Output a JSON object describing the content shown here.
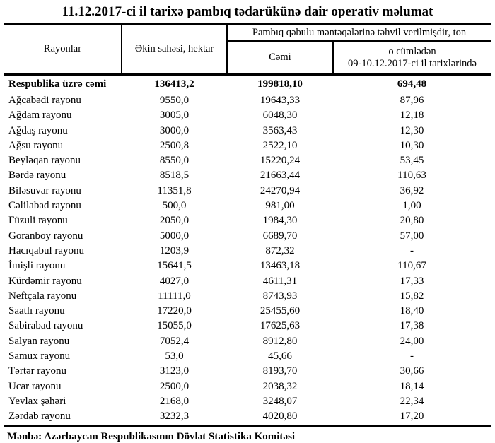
{
  "title": "11.12.2017-ci il tarixə pambıq tədarükünə dair operativ məlumat",
  "table": {
    "headers": {
      "districts": "Rayonlar",
      "area": "Əkin sahəsi, hektar",
      "delivered_group": "Pambıq qəbulu məntəqələrinə təhvil verilmişdir, ton",
      "total": "Cəmi",
      "recent_line1": "o cümlədən",
      "recent_line2": "09-10.12.2017-ci il tarixlərində"
    },
    "rows": [
      {
        "name": "Respublika üzrə cəmi",
        "area": "136413,2",
        "total": "199818,10",
        "recent": "694,48",
        "bold": true
      },
      {
        "name": "Ağcabədi rayonu",
        "area": "9550,0",
        "total": "19643,33",
        "recent": "87,96",
        "bold": false
      },
      {
        "name": "Ağdam rayonu",
        "area": "3005,0",
        "total": "6048,30",
        "recent": "12,18",
        "bold": false
      },
      {
        "name": "Ağdaş rayonu",
        "area": "3000,0",
        "total": "3563,43",
        "recent": "12,30",
        "bold": false
      },
      {
        "name": "Ağsu rayonu",
        "area": "2500,8",
        "total": "2522,10",
        "recent": "10,30",
        "bold": false
      },
      {
        "name": "Beyləqan rayonu",
        "area": "8550,0",
        "total": "15220,24",
        "recent": "53,45",
        "bold": false
      },
      {
        "name": "Bərdə rayonu",
        "area": "8518,5",
        "total": "21663,44",
        "recent": "110,63",
        "bold": false
      },
      {
        "name": "Biləsuvar rayonu",
        "area": "11351,8",
        "total": "24270,94",
        "recent": "36,92",
        "bold": false
      },
      {
        "name": "Cəlilabad rayonu",
        "area": "500,0",
        "total": "981,00",
        "recent": "1,00",
        "bold": false
      },
      {
        "name": "Füzuli rayonu",
        "area": "2050,0",
        "total": "1984,30",
        "recent": "20,80",
        "bold": false
      },
      {
        "name": "Goranboy rayonu",
        "area": "5000,0",
        "total": "6689,70",
        "recent": "57,00",
        "bold": false
      },
      {
        "name": "Hacıqabul rayonu",
        "area": "1203,9",
        "total": "872,32",
        "recent": "-",
        "bold": false
      },
      {
        "name": "İmişli rayonu",
        "area": "15641,5",
        "total": "13463,18",
        "recent": "110,67",
        "bold": false
      },
      {
        "name": "Kürdəmir rayonu",
        "area": "4027,0",
        "total": "4611,31",
        "recent": "17,33",
        "bold": false
      },
      {
        "name": "Neftçala rayonu",
        "area": "11111,0",
        "total": "8743,93",
        "recent": "15,82",
        "bold": false
      },
      {
        "name": "Saatlı rayonu",
        "area": "17220,0",
        "total": "25455,60",
        "recent": "18,40",
        "bold": false
      },
      {
        "name": "Sabirabad rayonu",
        "area": "15055,0",
        "total": "17625,63",
        "recent": "17,38",
        "bold": false
      },
      {
        "name": "Salyan rayonu",
        "area": "7052,4",
        "total": "8912,80",
        "recent": "24,00",
        "bold": false
      },
      {
        "name": "Samux rayonu",
        "area": "53,0",
        "total": "45,66",
        "recent": "-",
        "bold": false
      },
      {
        "name": "Tərtər rayonu",
        "area": "3123,0",
        "total": "8193,70",
        "recent": "30,66",
        "bold": false
      },
      {
        "name": "Ucar rayonu",
        "area": "2500,0",
        "total": "2038,32",
        "recent": "18,14",
        "bold": false
      },
      {
        "name": "Yevlax şəhəri",
        "area": "2168,0",
        "total": "3248,07",
        "recent": "22,34",
        "bold": false
      },
      {
        "name": "Zərdab rayonu",
        "area": "3232,3",
        "total": "4020,80",
        "recent": "17,20",
        "bold": false
      }
    ]
  },
  "footer": {
    "source": "Mənbə: Azərbaycan Respublikasının Dövlət Statistika Komitəsi"
  }
}
